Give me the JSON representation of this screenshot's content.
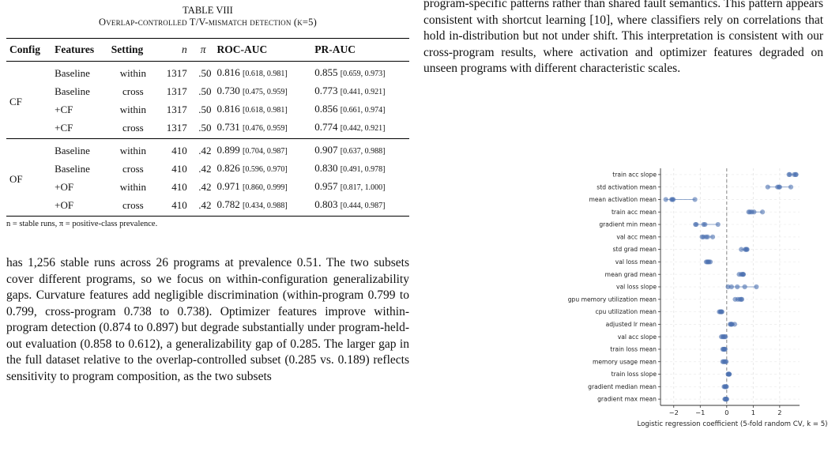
{
  "table": {
    "caption_title": "TABLE VIII",
    "caption_line": "Overlap-controlled T/V-mismatch detection (k=5)",
    "headers": [
      "Config",
      "Features",
      "Setting",
      "n",
      "π",
      "ROC-AUC",
      "PR-AUC"
    ],
    "groups": [
      {
        "config": "CF",
        "rows": [
          {
            "features": "Baseline",
            "setting": "within",
            "n": "1317",
            "pi": ".50",
            "roc": "0.816",
            "roc_ci": "[0.618, 0.981]",
            "pr": "0.855",
            "pr_ci": "[0.659, 0.973]"
          },
          {
            "features": "Baseline",
            "setting": "cross",
            "n": "1317",
            "pi": ".50",
            "roc": "0.730",
            "roc_ci": "[0.475, 0.959]",
            "pr": "0.773",
            "pr_ci": "[0.441, 0.921]"
          },
          {
            "features": "+CF",
            "setting": "within",
            "n": "1317",
            "pi": ".50",
            "roc": "0.816",
            "roc_ci": "[0.618, 0.981]",
            "pr": "0.856",
            "pr_ci": "[0.661, 0.974]"
          },
          {
            "features": "+CF",
            "setting": "cross",
            "n": "1317",
            "pi": ".50",
            "roc": "0.731",
            "roc_ci": "[0.476, 0.959]",
            "pr": "0.774",
            "pr_ci": "[0.442, 0.921]"
          }
        ]
      },
      {
        "config": "OF",
        "rows": [
          {
            "features": "Baseline",
            "setting": "within",
            "n": "410",
            "pi": ".42",
            "roc": "0.899",
            "roc_ci": "[0.704, 0.987]",
            "pr": "0.907",
            "pr_ci": "[0.637, 0.988]"
          },
          {
            "features": "Baseline",
            "setting": "cross",
            "n": "410",
            "pi": ".42",
            "roc": "0.826",
            "roc_ci": "[0.596, 0.970]",
            "pr": "0.830",
            "pr_ci": "[0.491, 0.978]"
          },
          {
            "features": "+OF",
            "setting": "within",
            "n": "410",
            "pi": ".42",
            "roc": "0.971",
            "roc_ci": "[0.860, 0.999]",
            "pr": "0.957",
            "pr_ci": "[0.817, 1.000]"
          },
          {
            "features": "+OF",
            "setting": "cross",
            "n": "410",
            "pi": ".42",
            "roc": "0.782",
            "roc_ci": "[0.434, 0.988]",
            "pr": "0.803",
            "pr_ci": "[0.444, 0.987]"
          }
        ]
      }
    ],
    "note": "n = stable runs, π = positive-class prevalence."
  },
  "text": {
    "left_paragraph": "has 1,256 stable runs across 26 programs at prevalence 0.51. The two subsets cover different programs, so we focus on within-configuration generalizability gaps. Curvature features add negligible discrimination (within-program 0.799 to 0.799, cross-program 0.738 to 0.738). Optimizer features improve within-program detection (0.874 to 0.897) but degrade substantially under program-held-out evaluation (0.858 to 0.612), a generalizability gap of 0.285. The larger gap in the full dataset relative to the overlap-controlled subset (0.285 vs. 0.189) reflects sensitivity to program composition, as the two subsets",
    "right_paragraph": "program-specific patterns rather than shared fault semantics. This pattern appears consistent with shortcut learning [10], where classifiers rely on correlations that hold in-distribution but not under shift. This interpretation is consistent with our cross-program results, where activation and optimizer features degraded on unseen programs with different characteristic scales."
  },
  "chart_data": {
    "type": "scatter",
    "xlabel": "Logistic regression coefficient (5-fold random CV, k = 5)",
    "xlim": [
      -2.5,
      2.75
    ],
    "xticks": [
      -2,
      -1,
      0,
      1,
      2
    ],
    "reference_line_x": 0,
    "grid": true,
    "color": "#4c72b0",
    "features": [
      {
        "name": "train acc slope",
        "values": [
          2.35,
          2.38,
          2.55,
          2.6,
          2.62
        ]
      },
      {
        "name": "std activation mean",
        "values": [
          1.55,
          1.92,
          1.97,
          2.0,
          2.42
        ]
      },
      {
        "name": "mean activation mean",
        "values": [
          -2.3,
          -2.08,
          -2.05,
          -2.02,
          -1.2
        ]
      },
      {
        "name": "train acc mean",
        "values": [
          0.83,
          0.88,
          0.95,
          1.03,
          1.35
        ]
      },
      {
        "name": "gradient min mean",
        "values": [
          -1.18,
          -1.15,
          -0.87,
          -0.82,
          -0.33
        ]
      },
      {
        "name": "val acc mean",
        "values": [
          -0.93,
          -0.88,
          -0.78,
          -0.72,
          -0.53
        ]
      },
      {
        "name": "std grad mean",
        "values": [
          0.55,
          0.7,
          0.73,
          0.75,
          0.77
        ]
      },
      {
        "name": "val loss mean",
        "values": [
          -0.77,
          -0.73,
          -0.7,
          -0.67,
          -0.62
        ]
      },
      {
        "name": "mean grad mean",
        "values": [
          0.47,
          0.55,
          0.6,
          0.62,
          0.63
        ]
      },
      {
        "name": "val loss slope",
        "values": [
          0.05,
          0.18,
          0.4,
          0.68,
          1.12
        ]
      },
      {
        "name": "gpu memory utilization mean",
        "values": [
          0.32,
          0.42,
          0.5,
          0.55,
          0.57
        ]
      },
      {
        "name": "cpu utilization mean",
        "values": [
          -0.28,
          -0.24,
          -0.22,
          -0.2,
          -0.18
        ]
      },
      {
        "name": "adjusted lr mean",
        "values": [
          0.13,
          0.16,
          0.18,
          0.2,
          0.3
        ]
      },
      {
        "name": "val acc slope",
        "values": [
          -0.2,
          -0.15,
          -0.12,
          -0.08,
          -0.05
        ]
      },
      {
        "name": "train loss mean",
        "values": [
          -0.15,
          -0.12,
          -0.1,
          -0.08,
          -0.06
        ]
      },
      {
        "name": "memory usage mean",
        "values": [
          -0.15,
          -0.12,
          -0.08,
          -0.05,
          -0.02
        ]
      },
      {
        "name": "train loss slope",
        "values": [
          0.05,
          0.07,
          0.08,
          0.09,
          0.1
        ]
      },
      {
        "name": "gradient median mean",
        "values": [
          -0.1,
          -0.07,
          -0.05,
          -0.03,
          -0.01
        ]
      },
      {
        "name": "gradient max mean",
        "values": [
          -0.07,
          -0.05,
          -0.03,
          -0.01,
          0.0
        ]
      }
    ]
  }
}
